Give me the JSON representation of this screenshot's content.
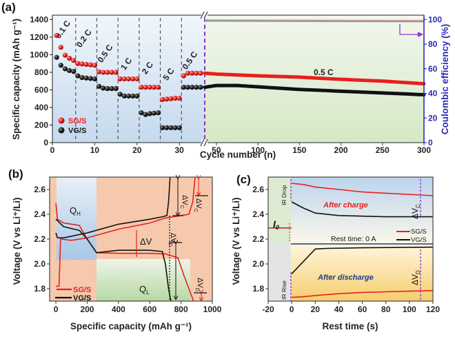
{
  "chart_data": [
    {
      "panel": "(a)",
      "type": "scatter",
      "title": "",
      "xlabel": "Cycle number (n)",
      "ylabel": "Specific capacity (mAh g⁻¹)",
      "y2label": "Coulombic efficiency (%)",
      "ylim": [
        0,
        1400
      ],
      "y2lim": [
        0,
        100
      ],
      "x_ticks_left": [
        "0",
        "10",
        "20",
        "30"
      ],
      "x_ticks_right": [
        "50",
        "100",
        "150",
        "200",
        "250",
        "300"
      ],
      "y_ticks": [
        "0",
        "200",
        "400",
        "600",
        "800",
        "1000",
        "1200",
        "1400"
      ],
      "y2_ticks": [
        "0",
        "20",
        "40",
        "60",
        "80",
        "100"
      ],
      "axis_break": "//",
      "rate_labels": [
        "0.1 C",
        "0.2 C",
        "0.5 C",
        "1 C",
        "2 C",
        "5 C",
        "0.5 C"
      ],
      "long_cycle_label": "0.5 C",
      "legend": [
        "SG/S",
        "VG/S"
      ],
      "legend_position": "bottom-left",
      "colors": {
        "SG/S": "#e8201c",
        "VG/S": "#111111",
        "axis2": "#2a2ab8",
        "marker_dash": "#8a35c9"
      },
      "series": [
        {
          "name": "SG/S",
          "rate_x": [
            1,
            2,
            3,
            4,
            5,
            6,
            7,
            8,
            9,
            10,
            11,
            12,
            13,
            14,
            15,
            16,
            17,
            18,
            19,
            20,
            21,
            22,
            23,
            24,
            25,
            26,
            27,
            28,
            29,
            30,
            31,
            32,
            33,
            34,
            35
          ],
          "rate_y": [
            1220,
            1085,
            995,
            960,
            935,
            900,
            895,
            890,
            885,
            880,
            805,
            800,
            800,
            800,
            800,
            725,
            725,
            725,
            725,
            725,
            630,
            630,
            630,
            630,
            630,
            490,
            495,
            500,
            505,
            505,
            760,
            790,
            790,
            790,
            790
          ],
          "long_x": [
            36,
            50,
            100,
            150,
            200,
            250,
            300
          ],
          "long_y": [
            790,
            780,
            760,
            745,
            720,
            700,
            670
          ]
        },
        {
          "name": "VG/S",
          "rate_x": [
            1,
            2,
            3,
            4,
            5,
            6,
            7,
            8,
            9,
            10,
            11,
            12,
            13,
            14,
            15,
            16,
            17,
            18,
            19,
            20,
            21,
            22,
            23,
            24,
            25,
            26,
            27,
            28,
            29,
            30,
            31,
            32,
            33,
            34,
            35
          ],
          "rate_y": [
            970,
            880,
            840,
            820,
            810,
            760,
            740,
            735,
            730,
            725,
            640,
            620,
            615,
            615,
            615,
            550,
            530,
            530,
            530,
            530,
            340,
            320,
            330,
            335,
            340,
            170,
            170,
            170,
            170,
            170,
            630,
            630,
            630,
            630,
            630
          ],
          "long_x": [
            36,
            50,
            75,
            100,
            150,
            200,
            250,
            300
          ],
          "long_y": [
            630,
            650,
            650,
            635,
            605,
            585,
            565,
            545
          ]
        },
        {
          "name": "Coulombic efficiency",
          "axis": "y2",
          "long_x": [
            36,
            300
          ],
          "long_y": [
            99,
            98.5
          ]
        }
      ]
    },
    {
      "panel": "(b)",
      "type": "line",
      "xlabel": "Specific capacity (mAh g⁻¹)",
      "ylabel": "Voltage (V vs Li⁺/Li)",
      "xlim": [
        -40,
        1000
      ],
      "ylim": [
        1.7,
        2.7
      ],
      "x_ticks": [
        "0",
        "200",
        "400",
        "600",
        "800",
        "1000"
      ],
      "y_ticks": [
        "1.8",
        "2.0",
        "2.2",
        "2.4",
        "2.6"
      ],
      "annotations": [
        "Q_H",
        "Q_L",
        "ΔV",
        "ΔV_C",
        "ΔV_C",
        "ΔV_D",
        "ΔV_D"
      ],
      "legend": [
        "SG/S",
        "VG/S"
      ],
      "legend_position": "bottom-left",
      "series": [
        {
          "name": "SG/S discharge",
          "x": [
            0,
            10,
            50,
            150,
            200,
            260,
            400,
            600,
            700,
            780,
            820,
            880
          ],
          "y": [
            2.49,
            2.36,
            2.33,
            2.31,
            2.2,
            2.09,
            2.085,
            2.085,
            2.08,
            2.05,
            1.9,
            1.7
          ]
        },
        {
          "name": "SG/S charge",
          "x": [
            0,
            20,
            30,
            100,
            200,
            400,
            600,
            700,
            800,
            850,
            875,
            890
          ],
          "y": [
            1.82,
            1.82,
            2.2,
            2.19,
            2.21,
            2.28,
            2.33,
            2.37,
            2.39,
            2.4,
            2.5,
            2.7
          ]
        },
        {
          "name": "VG/S discharge",
          "x": [
            0,
            50,
            150,
            200,
            260,
            400,
            600,
            680,
            700,
            720,
            735
          ],
          "y": [
            2.36,
            2.3,
            2.27,
            2.2,
            2.09,
            2.11,
            2.11,
            2.1,
            2.0,
            1.8,
            1.7
          ]
        },
        {
          "name": "VG/S charge",
          "x": [
            0,
            10,
            50,
            200,
            400,
            500,
            600,
            680,
            710,
            720,
            730
          ],
          "y": [
            2.25,
            2.21,
            2.21,
            2.25,
            2.32,
            2.34,
            2.36,
            2.38,
            2.39,
            2.5,
            2.7
          ]
        }
      ]
    },
    {
      "panel": "(c)",
      "type": "line",
      "xlabel": "Rest time (s)",
      "ylabel": "Voltage (V vs Li⁺/Li)",
      "xlim": [
        -20,
        120
      ],
      "ylim": [
        1.7,
        2.7
      ],
      "x_ticks": [
        "-20",
        "0",
        "20",
        "40",
        "60",
        "80",
        "100",
        "120"
      ],
      "y_ticks": [
        "1.8",
        "2.0",
        "2.2",
        "2.4",
        "2.6"
      ],
      "annotations": [
        "IR Drop",
        "IR Rise",
        "After charge",
        "After discharge",
        "Rest time: 0 A",
        "I₀",
        "ΔV_C",
        "ΔV_D"
      ],
      "legend": [
        "SG/S",
        "VG/S"
      ],
      "legend_position": "center-right",
      "series": [
        {
          "name": "SG/S after charge",
          "x": [
            0,
            10,
            20,
            40,
            60,
            80,
            100,
            120
          ],
          "y": [
            2.65,
            2.64,
            2.62,
            2.6,
            2.58,
            2.57,
            2.56,
            2.55
          ]
        },
        {
          "name": "VG/S after charge",
          "x": [
            0,
            10,
            20,
            40,
            60,
            80,
            100,
            120
          ],
          "y": [
            2.5,
            2.45,
            2.41,
            2.39,
            2.385,
            2.38,
            2.38,
            2.38
          ]
        },
        {
          "name": "SG/S after discharge",
          "x": [
            0,
            10,
            20,
            40,
            60,
            80,
            100,
            120
          ],
          "y": [
            1.73,
            1.735,
            1.745,
            1.76,
            1.77,
            1.775,
            1.78,
            1.785
          ]
        },
        {
          "name": "VG/S after discharge",
          "x": [
            0,
            20,
            30,
            60,
            120
          ],
          "y": [
            1.92,
            2.12,
            2.125,
            2.13,
            2.135
          ]
        },
        {
          "name": "I0",
          "x": [
            -20,
            0
          ],
          "y": [
            2.29,
            2.29
          ]
        }
      ]
    }
  ],
  "labels": {
    "panel_a": "(a)",
    "panel_b": "(b)",
    "panel_c": "(c)",
    "a_xlabel": "Cycle number (n)",
    "a_ylabel": "Specific capacity (mAh g⁻¹)",
    "a_y2label": "Coulombic efficiency (%)",
    "a_long": "0.5 C",
    "b_xlabel": "Specific capacity (mAh g⁻¹)",
    "b_ylabel": "Voltage (V vs Li⁺/Li)",
    "c_xlabel": "Rest time (s)",
    "c_ylabel": "Voltage (V vs Li⁺/Li)",
    "sg": "SG/S",
    "vg": "VG/S",
    "qh": "Q",
    "qh_sub": "H",
    "ql": "Q",
    "ql_sub": "L",
    "dv": "ΔV",
    "dvc": "ΔV",
    "dvc_sub": "C",
    "dvd": "ΔV",
    "dvd_sub": "D",
    "ir_drop": "IR Drop",
    "ir_rise": "IR Rise",
    "after_charge": "After charge",
    "after_discharge": "After discharge",
    "rest": "Rest time: 0 A",
    "i0": "I",
    "i0_sub": "0"
  }
}
